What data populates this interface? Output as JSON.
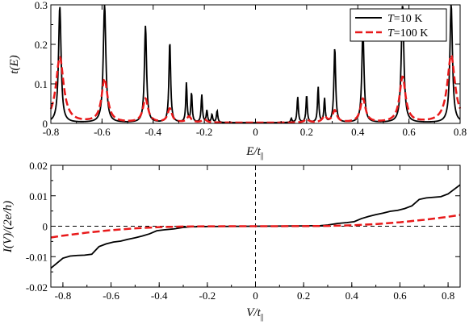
{
  "chart_data": [
    {
      "type": "line",
      "xlabel_main": "E/t",
      "xlabel_sub": "||",
      "ylabel": "t(E)",
      "xlim": [
        -0.8,
        0.8
      ],
      "ylim": [
        0,
        0.3
      ],
      "xticks": [
        "-0.8",
        "-0.6",
        "-0.4",
        "-0.2",
        "0",
        "0.2",
        "0.4",
        "0.6",
        "0.8"
      ],
      "yticks": [
        "0",
        "0.1",
        "0.2",
        "0.3"
      ],
      "legend_position": "top-right",
      "series": [
        {
          "name": "T=10 K",
          "legend_var": "T",
          "legend_rest": "=10 K",
          "color": "#000000",
          "style": "solid",
          "background": 0.0015,
          "peaks": [
            {
              "x": -0.765,
              "h": 0.295,
              "w": 0.006
            },
            {
              "x": -0.59,
              "h": 0.3,
              "w": 0.006
            },
            {
              "x": -0.43,
              "h": 0.245,
              "w": 0.005
            },
            {
              "x": -0.335,
              "h": 0.205,
              "w": 0.004
            },
            {
              "x": -0.27,
              "h": 0.1,
              "w": 0.003
            },
            {
              "x": -0.25,
              "h": 0.075,
              "w": 0.003
            },
            {
              "x": -0.21,
              "h": 0.07,
              "w": 0.003
            },
            {
              "x": -0.19,
              "h": 0.03,
              "w": 0.003
            },
            {
              "x": -0.17,
              "h": 0.02,
              "w": 0.003
            },
            {
              "x": -0.15,
              "h": 0.03,
              "w": 0.003
            },
            {
              "x": 0.14,
              "h": 0.01,
              "w": 0.003
            },
            {
              "x": 0.165,
              "h": 0.065,
              "w": 0.003
            },
            {
              "x": 0.2,
              "h": 0.07,
              "w": 0.003
            },
            {
              "x": 0.245,
              "h": 0.09,
              "w": 0.003
            },
            {
              "x": 0.27,
              "h": 0.06,
              "w": 0.003
            },
            {
              "x": 0.31,
              "h": 0.19,
              "w": 0.004
            },
            {
              "x": 0.42,
              "h": 0.24,
              "w": 0.005
            },
            {
              "x": 0.575,
              "h": 0.3,
              "w": 0.006
            },
            {
              "x": 0.765,
              "h": 0.3,
              "w": 0.006
            }
          ]
        },
        {
          "name": "T=100 K",
          "legend_var": "T",
          "legend_rest": "=100 K",
          "color": "#e8191a",
          "style": "dashed",
          "background": 0.0015,
          "peaks": [
            {
              "x": -0.765,
              "h": 0.165,
              "w": 0.018
            },
            {
              "x": -0.59,
              "h": 0.11,
              "w": 0.014
            },
            {
              "x": -0.43,
              "h": 0.06,
              "w": 0.012
            },
            {
              "x": -0.335,
              "h": 0.035,
              "w": 0.01
            },
            {
              "x": -0.26,
              "h": 0.015,
              "w": 0.01
            },
            {
              "x": -0.2,
              "h": 0.008,
              "w": 0.01
            },
            {
              "x": 0.2,
              "h": 0.008,
              "w": 0.01
            },
            {
              "x": 0.27,
              "h": 0.015,
              "w": 0.01
            },
            {
              "x": 0.31,
              "h": 0.03,
              "w": 0.01
            },
            {
              "x": 0.42,
              "h": 0.06,
              "w": 0.012
            },
            {
              "x": 0.575,
              "h": 0.115,
              "w": 0.014
            },
            {
              "x": 0.765,
              "h": 0.17,
              "w": 0.018
            }
          ]
        }
      ]
    },
    {
      "type": "line",
      "xlabel_main": "V/t",
      "xlabel_sub": "||",
      "ylabel": "I(V)/(2e/h)",
      "xlim": [
        -0.85,
        0.85
      ],
      "ylim": [
        -0.02,
        0.02
      ],
      "xticks": [
        -0.8,
        -0.6,
        -0.4,
        -0.2,
        0,
        0.2,
        0.4,
        0.6,
        0.8
      ],
      "xtick_labels": [
        "-0.8",
        "-0.6",
        "-0.4",
        "-0.2",
        "0",
        "0.2",
        "0.4",
        "0.6",
        "0.8"
      ],
      "yticks": [
        -0.02,
        -0.01,
        0,
        0.01,
        0.02
      ],
      "ytick_labels": [
        "-0.02",
        "-0.01",
        "0",
        "0.01",
        "0.02"
      ],
      "reference_lines": {
        "horizontal": 0,
        "vertical": 0
      },
      "series": [
        {
          "name": "T=10 K",
          "color": "#000000",
          "style": "solid",
          "x": [
            -0.85,
            -0.8,
            -0.77,
            -0.74,
            -0.71,
            -0.68,
            -0.65,
            -0.62,
            -0.59,
            -0.56,
            -0.53,
            -0.5,
            -0.47,
            -0.44,
            -0.41,
            -0.38,
            -0.34,
            -0.3,
            -0.27,
            -0.2,
            0,
            0.2,
            0.27,
            0.3,
            0.34,
            0.38,
            0.41,
            0.44,
            0.47,
            0.5,
            0.53,
            0.56,
            0.59,
            0.62,
            0.65,
            0.68,
            0.71,
            0.74,
            0.77,
            0.8,
            0.85
          ],
          "y": [
            -0.0138,
            -0.0105,
            -0.0098,
            -0.0096,
            -0.0095,
            -0.0092,
            -0.0067,
            -0.0058,
            -0.0052,
            -0.0049,
            -0.0043,
            -0.0038,
            -0.0032,
            -0.0025,
            -0.0015,
            -0.0012,
            -0.0009,
            -0.0004,
            -0.0002,
            -0.0001,
            0,
            0.0001,
            0.0002,
            0.0004,
            0.0009,
            0.0012,
            0.0015,
            0.0025,
            0.0032,
            0.0038,
            0.0043,
            0.0049,
            0.0052,
            0.0058,
            0.0067,
            0.0088,
            0.0093,
            0.0095,
            0.0097,
            0.0106,
            0.0136
          ]
        },
        {
          "name": "T=100 K",
          "color": "#e8191a",
          "style": "dashed",
          "x": [
            -0.85,
            -0.8,
            -0.7,
            -0.6,
            -0.5,
            -0.4,
            -0.3,
            -0.2,
            -0.1,
            0,
            0.1,
            0.2,
            0.3,
            0.4,
            0.5,
            0.6,
            0.7,
            0.8,
            0.85
          ],
          "y": [
            -0.0037,
            -0.0031,
            -0.0021,
            -0.0013,
            -0.0007,
            -0.0003,
            -0.0001,
            -3e-05,
            -1e-05,
            0,
            1e-05,
            3e-05,
            0.0001,
            0.0003,
            0.0007,
            0.0013,
            0.0021,
            0.0031,
            0.0037
          ]
        }
      ]
    }
  ]
}
